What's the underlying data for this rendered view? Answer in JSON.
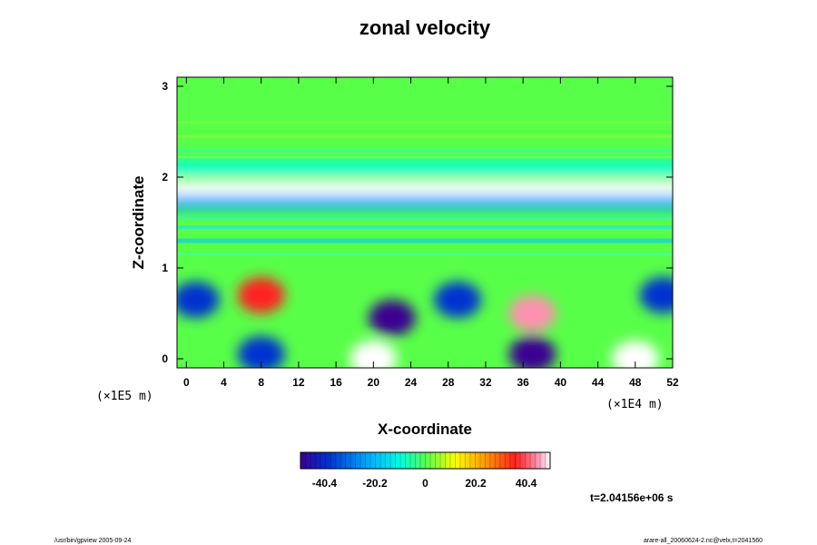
{
  "chart_data": {
    "type": "heatmap",
    "title": "zonal velocity",
    "xlabel": "X-coordinate",
    "ylabel": "Z-coordinate",
    "x_ticks": [
      "0",
      "4",
      "8",
      "12",
      "16",
      "20",
      "24",
      "28",
      "32",
      "36",
      "40",
      "44",
      "48",
      "52"
    ],
    "y_ticks": [
      "0",
      "1",
      "2",
      "3"
    ],
    "xlim": [
      -1,
      52
    ],
    "ylim": [
      -0.1,
      3.1
    ],
    "x_scale_note": "(×1E4 m)",
    "y_scale_note": "(×1E5 m)",
    "colorbar": {
      "range": [
        -50,
        50
      ],
      "tick_labels": [
        "-40.4",
        "-20.2",
        "0",
        "20.2",
        "40.4"
      ],
      "tick_values": [
        -40.4,
        -20.2,
        0,
        20.2,
        40.4
      ],
      "colors": [
        "#3a0090",
        "#0030d0",
        "#00b0ff",
        "#00ffe0",
        "#50ff50",
        "#ffff00",
        "#ff9000",
        "#ff2020",
        "#ff90b0",
        "#ffffff"
      ]
    },
    "time_label": "t=2.04156e+06 s",
    "features": [
      {
        "x": 20,
        "z": 1.88,
        "value": 45,
        "shape": "band"
      },
      {
        "x": 26,
        "z": 2.1,
        "value": -15,
        "shape": "band"
      },
      {
        "x": 26,
        "z": 1.72,
        "value": -25,
        "shape": "band"
      },
      {
        "x": 20,
        "z": 0.0,
        "value": 50,
        "shape": "blob"
      },
      {
        "x": 37,
        "z": 0.5,
        "value": 42,
        "shape": "blob"
      },
      {
        "x": 48,
        "z": 0.0,
        "value": 45,
        "shape": "blob"
      },
      {
        "x": 22,
        "z": 0.45,
        "value": -45,
        "shape": "blob"
      },
      {
        "x": 37,
        "z": 0.05,
        "value": -45,
        "shape": "blob"
      },
      {
        "x": 8,
        "z": 0.05,
        "value": -35,
        "shape": "blob"
      },
      {
        "x": 1,
        "z": 0.65,
        "value": -38,
        "shape": "blob"
      },
      {
        "x": 29,
        "z": 0.65,
        "value": -38,
        "shape": "blob"
      },
      {
        "x": 51,
        "z": 0.7,
        "value": -38,
        "shape": "blob"
      },
      {
        "x": 8,
        "z": 0.7,
        "value": 32,
        "shape": "blob"
      }
    ]
  },
  "footer": {
    "left": "/usr/bin/gpview 2005-09-24",
    "right": "arare-all_20060624-2.nc@velx,t=2041560"
  }
}
